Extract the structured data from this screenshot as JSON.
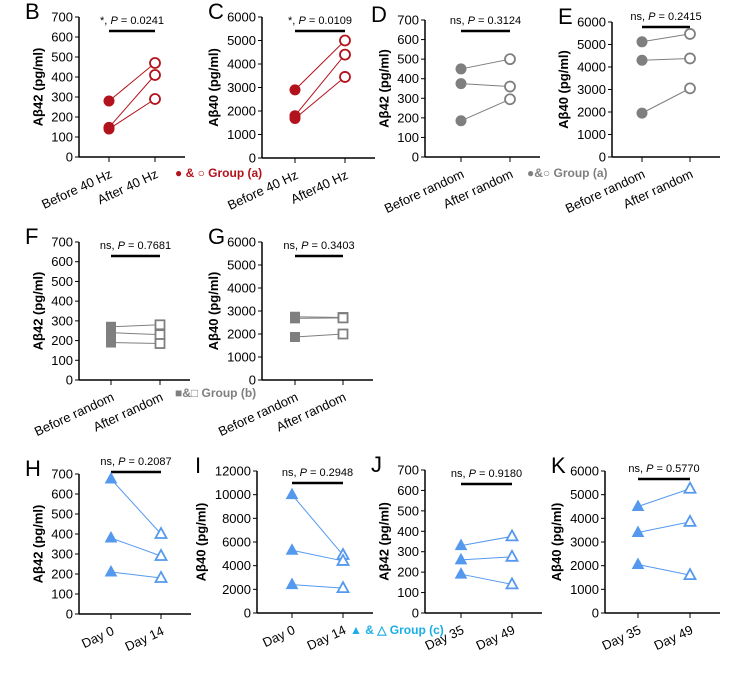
{
  "colors": {
    "red": "#b3121c",
    "gray": "#7f7f7f",
    "blue": "#5599ee",
    "legend_blue": "#19aee6"
  },
  "legends": [
    {
      "text": "● & ○ Group (a)",
      "color": "red"
    },
    {
      "text": "●&○ Group (a)",
      "color": "gray"
    },
    {
      "text": "■&□ Group (b)",
      "color": "gray"
    },
    {
      "text": "▲ & △ Group (c)",
      "color": "legend_blue"
    }
  ],
  "chart_data": [
    {
      "panel": "B",
      "type": "line",
      "ylabel": "Aβ42 (pg/ml)",
      "ylim": [
        0,
        700
      ],
      "yticks": [
        0,
        100,
        200,
        300,
        400,
        500,
        600,
        700
      ],
      "categories": [
        "Before 40 Hz",
        "After 40 Hz"
      ],
      "annotation": "*, P = 0.0241",
      "color": "red",
      "marker": "circle",
      "pairs": [
        [
          280,
          470
        ],
        [
          148,
          410
        ],
        [
          140,
          290
        ]
      ]
    },
    {
      "panel": "C",
      "type": "line",
      "ylabel": "Aβ40 (pg/ml)",
      "ylim": [
        0,
        6000
      ],
      "yticks": [
        0,
        1000,
        2000,
        3000,
        4000,
        5000,
        6000
      ],
      "categories": [
        "Before 40 Hz",
        "After40 Hz"
      ],
      "annotation": "*, P = 0.0109",
      "color": "red",
      "marker": "circle",
      "pairs": [
        [
          2900,
          5000
        ],
        [
          1800,
          4400
        ],
        [
          1680,
          3450
        ]
      ]
    },
    {
      "panel": "D",
      "type": "line",
      "ylabel": "Aβ42 (pg/ml)",
      "ylim": [
        0,
        700
      ],
      "yticks": [
        0,
        100,
        200,
        300,
        400,
        500,
        600,
        700
      ],
      "categories": [
        "Before random",
        "After random"
      ],
      "annotation": "ns, P = 0.3124",
      "color": "gray",
      "marker": "circle",
      "pairs": [
        [
          450,
          500
        ],
        [
          375,
          360
        ],
        [
          185,
          295
        ]
      ]
    },
    {
      "panel": "E",
      "type": "line",
      "ylabel": "Aβ40 (pg/ml)",
      "ylim": [
        0,
        6000
      ],
      "yticks": [
        0,
        1000,
        2000,
        3000,
        4000,
        5000,
        6000
      ],
      "categories": [
        "Before random",
        "After random"
      ],
      "annotation": "ns, P = 0.2415",
      "color": "gray",
      "marker": "circle",
      "pairs": [
        [
          5120,
          5470
        ],
        [
          4300,
          4380
        ],
        [
          1950,
          3050
        ]
      ]
    },
    {
      "panel": "F",
      "type": "line",
      "ylabel": "Aβ42 (pg/ml)",
      "ylim": [
        0,
        700
      ],
      "yticks": [
        0,
        100,
        200,
        300,
        400,
        500,
        600,
        700
      ],
      "categories": [
        "Before random",
        "After random"
      ],
      "annotation": "ns, P = 0.7681",
      "color": "gray",
      "marker": "square",
      "pairs": [
        [
          270,
          280
        ],
        [
          240,
          230
        ],
        [
          190,
          185
        ]
      ]
    },
    {
      "panel": "G",
      "type": "line",
      "ylabel": "Aβ40 (pg/ml)",
      "ylim": [
        0,
        6000
      ],
      "yticks": [
        0,
        1000,
        2000,
        3000,
        4000,
        5000,
        6000
      ],
      "categories": [
        "Before random",
        "After random"
      ],
      "annotation": "ns, P = 0.3403",
      "color": "gray",
      "marker": "square",
      "pairs": [
        [
          2750,
          2720
        ],
        [
          2680,
          2700
        ],
        [
          1870,
          2000
        ]
      ]
    },
    {
      "panel": "H",
      "type": "line",
      "ylabel": "Aβ42 (pg/ml)",
      "ylim": [
        0,
        700
      ],
      "yticks": [
        0,
        100,
        200,
        300,
        400,
        500,
        600,
        700
      ],
      "categories": [
        "Day 0",
        "Day 14"
      ],
      "annotation": "ns, P = 0.2087",
      "color": "blue",
      "marker": "triangle",
      "pairs": [
        [
          675,
          400
        ],
        [
          380,
          290
        ],
        [
          210,
          180
        ]
      ]
    },
    {
      "panel": "I",
      "type": "line",
      "ylabel": "Aβ40 (pg/ml)",
      "ylim": [
        0,
        12000
      ],
      "yticks": [
        0,
        2000,
        4000,
        6000,
        8000,
        10000,
        12000
      ],
      "categories": [
        "Day 0",
        "Day 14"
      ],
      "annotation": "ns, P = 0.2948",
      "color": "blue",
      "marker": "triangle",
      "pairs": [
        [
          10000,
          4900
        ],
        [
          5300,
          4400
        ],
        [
          2400,
          2100
        ]
      ]
    },
    {
      "panel": "J",
      "type": "line",
      "ylabel": "Aβ42 (pg/ml)",
      "ylim": [
        0,
        700
      ],
      "yticks": [
        0,
        100,
        200,
        300,
        400,
        500,
        600,
        700
      ],
      "categories": [
        "Day 35",
        "Day 49"
      ],
      "annotation": "ns, P = 0.9180",
      "color": "blue",
      "marker": "triangle",
      "pairs": [
        [
          330,
          375
        ],
        [
          260,
          275
        ],
        [
          190,
          140
        ]
      ]
    },
    {
      "panel": "K",
      "type": "line",
      "ylabel": "Aβ40 (pg/ml)",
      "ylim": [
        0,
        6000
      ],
      "yticks": [
        0,
        1000,
        2000,
        3000,
        4000,
        5000,
        6000
      ],
      "categories": [
        "Day 35",
        "Day 49"
      ],
      "annotation": "ns, P = 0.5770",
      "color": "blue",
      "marker": "triangle",
      "pairs": [
        [
          4500,
          5250
        ],
        [
          3400,
          3850
        ],
        [
          2050,
          1600
        ]
      ]
    }
  ]
}
